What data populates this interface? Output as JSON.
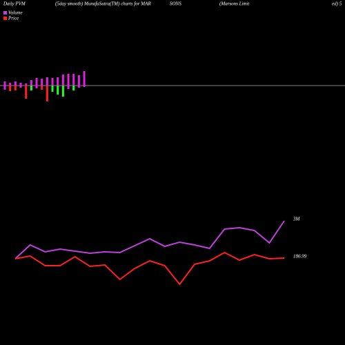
{
  "header": [
    "Daily PVM",
    "(5day smooth) MunafaSutra(TM) charts for MAR",
    "SONS",
    "(Marsons Limit",
    "ed) 5"
  ],
  "chart_data": [
    {
      "type": "bar",
      "ylim": [
        -50,
        50
      ],
      "series": [
        {
          "color": "#e020e0",
          "values": [
            6,
            4,
            6,
            4,
            3,
            8,
            11,
            10,
            12,
            11,
            12,
            16,
            17,
            17,
            15,
            21
          ]
        },
        {
          "colors": [
            "#e020e0",
            "#ff2020",
            "#ff2020",
            "#e020e0",
            "#ff2020",
            "#20ff20",
            "#e020e0",
            "#ff2020",
            "#ff2020",
            "#20ff20",
            "#20ff20",
            "#20ff20",
            "#e020e0",
            "#20ff20",
            "#e020e0",
            "#e020e0"
          ],
          "values": [
            -6,
            -8,
            -7,
            -3,
            -19,
            -7,
            -4,
            -6,
            -23,
            -9,
            -13,
            -16,
            -5,
            -7,
            -3,
            -2
          ]
        }
      ]
    },
    {
      "type": "line",
      "ylim": [
        0,
        120
      ],
      "series": [
        {
          "name": "Volume",
          "color": "#c040e0",
          "values": [
            45,
            65,
            55,
            59,
            56,
            53,
            55,
            54,
            64,
            74,
            63,
            69,
            65,
            60,
            88,
            90,
            86,
            68,
            100
          ]
        },
        {
          "name": "Price",
          "color": "#ff2020",
          "values": [
            45,
            49,
            35,
            35,
            48,
            34,
            36,
            15,
            31,
            42,
            35,
            8,
            37,
            42,
            54,
            43,
            51,
            45,
            46
          ]
        }
      ],
      "annotations": [
        "3M",
        "186.99"
      ]
    }
  ]
}
